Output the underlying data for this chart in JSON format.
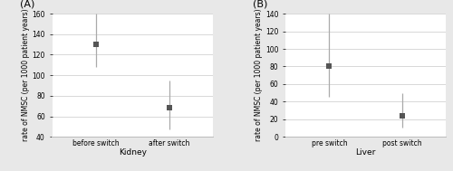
{
  "panel_A": {
    "label": "(A)",
    "categories": [
      "before switch",
      "after switch"
    ],
    "xlabel": "Kidney",
    "ylabel": "rate of NMSC (per 1000 patient years)",
    "means": [
      130,
      68
    ],
    "ci_low": [
      108,
      47
    ],
    "ci_high": [
      160,
      95
    ],
    "ylim": [
      40,
      160
    ],
    "yticks": [
      40,
      60,
      80,
      100,
      120,
      140,
      160
    ]
  },
  "panel_B": {
    "label": "(B)",
    "categories": [
      "pre switch",
      "post switch"
    ],
    "xlabel": "Liver",
    "ylabel": "rate of NMSC (per 1000 patient years)",
    "means": [
      80,
      24
    ],
    "ci_low": [
      45,
      10
    ],
    "ci_high": [
      140,
      50
    ],
    "ylim": [
      0,
      140
    ],
    "yticks": [
      0,
      20,
      40,
      60,
      80,
      100,
      120,
      140
    ]
  },
  "point_color": "#555555",
  "line_color": "#aaaaaa",
  "outer_bg": "#e8e8e8",
  "plot_bg": "#ffffff",
  "grid_color": "#d8d8d8",
  "spine_color": "#bbbbbb",
  "marker_size": 4,
  "linewidth": 0.9,
  "tick_fontsize": 5.5,
  "ylabel_fontsize": 5.5,
  "xlabel_fontsize": 6.5,
  "label_fontsize": 8
}
